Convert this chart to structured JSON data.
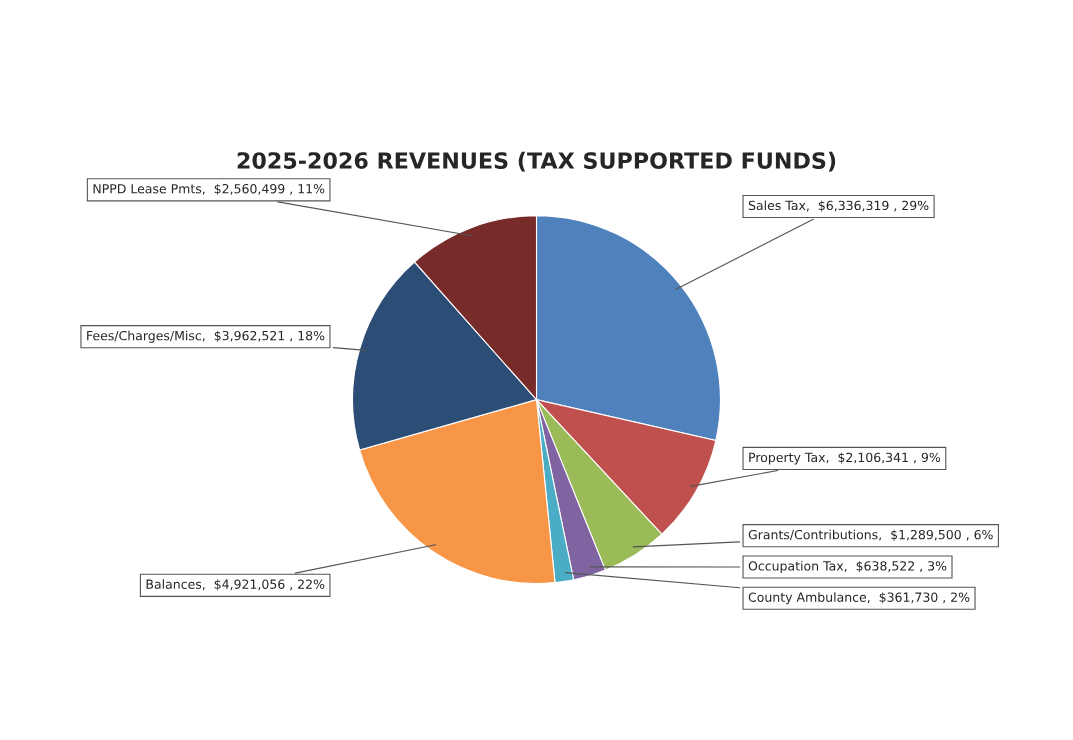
{
  "chart_data": {
    "type": "pie",
    "title": "2025-2026 REVENUES (TAX SUPPORTED FUNDS)",
    "categories": [
      "Sales Tax",
      "Property Tax",
      "Grants/Contributions",
      "Occupation Tax",
      "County Ambulance",
      "Balances",
      "Fees/Charges/Misc",
      "NPPD Lease Pmts"
    ],
    "values": [
      6336319,
      2106341,
      1289500,
      638522,
      361730,
      4921056,
      3962521,
      2560499
    ],
    "value_labels": [
      "$6,336,319 , 29%",
      "$2,106,341 , 9%",
      "$1,289,500 , 6%",
      "$638,522 , 3%",
      "$361,730 , 2%",
      "$4,921,056 , 22%",
      "$3,962,521 , 18%",
      "$2,560,499 , 11%"
    ],
    "colors": [
      "#4f81bd",
      "#c0504d",
      "#9bbb59",
      "#8064a2",
      "#4bacc6",
      "#f79646",
      "#2c4d75",
      "#772c2a"
    ],
    "legend": false
  }
}
